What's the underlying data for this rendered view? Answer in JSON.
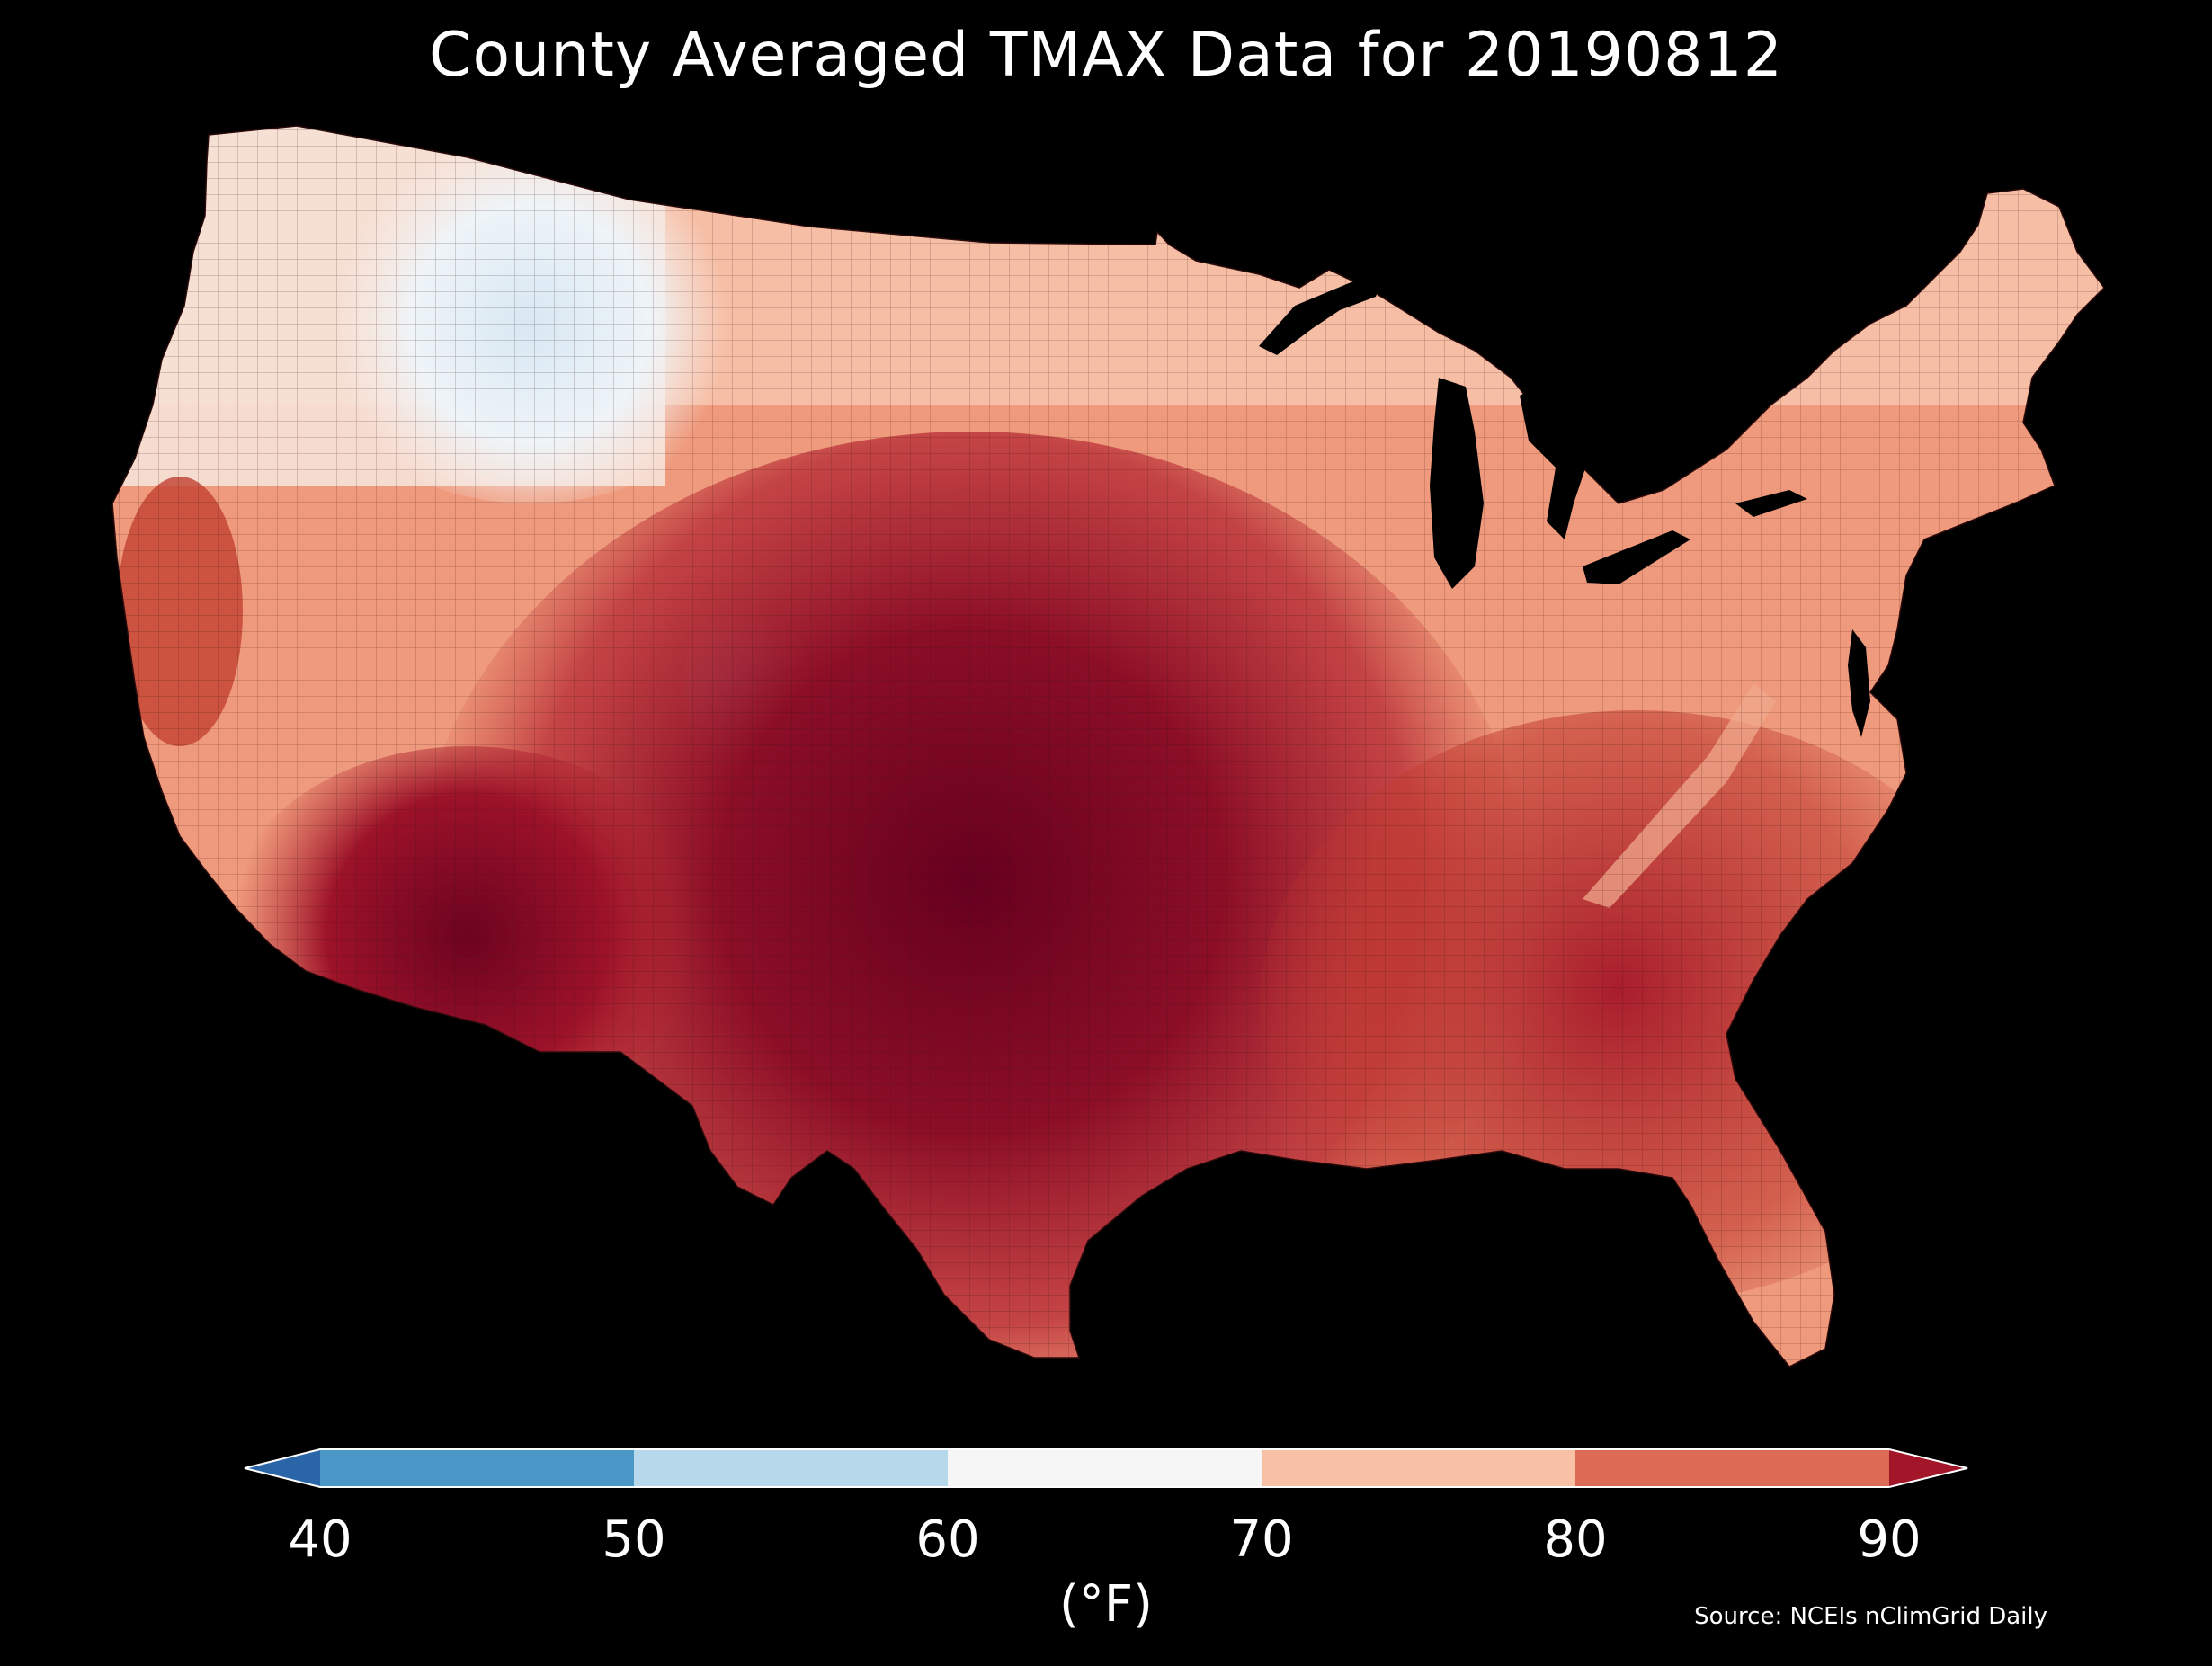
{
  "title": "County Averaged TMAX Data for 20190812",
  "source": "Source: NCEIs nClimGrid Daily",
  "colorbar": {
    "unit_label": "(°F)",
    "ticks": [
      "40",
      "50",
      "60",
      "70",
      "80",
      "90"
    ],
    "extend": "both",
    "bins": [
      {
        "range": [
          40,
          50
        ],
        "color": "#4b97c8"
      },
      {
        "range": [
          50,
          60
        ],
        "color": "#b7d8ea"
      },
      {
        "range": [
          60,
          70
        ],
        "color": "#f6f6f6"
      },
      {
        "range": [
          70,
          80
        ],
        "color": "#f8c1a6"
      },
      {
        "range": [
          80,
          90
        ],
        "color": "#dc6a55"
      }
    ],
    "under_color": "#2a65a8",
    "over_color": "#a3162a"
  },
  "map": {
    "region": "Contiguous United States",
    "level": "county",
    "variable": "TMAX",
    "background": "#000000"
  }
}
